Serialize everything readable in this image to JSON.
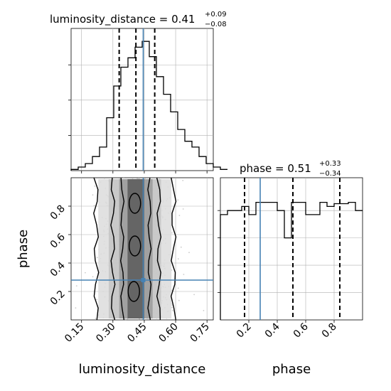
{
  "chart_data": [
    {
      "type": "histogram",
      "panel": "luminosity_distance marginal",
      "title": {
        "param": "luminosity_distance",
        "median": "0.41",
        "plus": "+0.09",
        "minus": "−0.08"
      },
      "xlim": [
        0.1,
        0.78
      ],
      "bin_edges_start": 0.1,
      "bin_width": 0.034,
      "counts": [
        1,
        3,
        6,
        12,
        20,
        45,
        72,
        88,
        96,
        105,
        110,
        97,
        80,
        65,
        50,
        35,
        25,
        20,
        12,
        6,
        3,
        1
      ],
      "quantiles": [
        0.33,
        0.41,
        0.5
      ],
      "truth": 0.445,
      "grid": true
    },
    {
      "type": "histogram",
      "panel": "phase marginal",
      "title": {
        "param": "phase",
        "median": "0.51",
        "plus": "+0.33",
        "minus": "−0.34"
      },
      "xlim": [
        0.0,
        1.0
      ],
      "bin_edges_start": 0.0,
      "bin_width": 0.05,
      "counts": [
        0.77,
        0.8,
        0.8,
        0.83,
        0.77,
        0.86,
        0.86,
        0.86,
        0.8,
        0.6,
        0.86,
        0.86,
        0.77,
        0.77,
        0.86,
        0.83,
        0.85,
        0.85,
        0.86,
        0.8
      ],
      "ylim": [
        0,
        1.04
      ],
      "quantiles": [
        0.17,
        0.51,
        0.84
      ],
      "truth": 0.28,
      "grid": true
    },
    {
      "type": "contour",
      "panel": "luminosity_distance vs phase",
      "xlim": [
        0.1,
        0.78
      ],
      "ylim": [
        0.0,
        1.0
      ],
      "x_center": 0.41,
      "x_sigma": 0.085,
      "truth": {
        "luminosity_distance": 0.445,
        "phase": 0.28
      },
      "grid": true
    }
  ],
  "axes": {
    "luminosity_distance": {
      "label": "luminosity_distance",
      "ticks": [
        0.15,
        0.3,
        0.45,
        0.6,
        0.75
      ],
      "tick_labels": [
        "0.15",
        "0.30",
        "0.45",
        "0.60",
        "0.75"
      ]
    },
    "phase": {
      "label": "phase",
      "ticks": [
        0.2,
        0.4,
        0.6,
        0.8
      ],
      "tick_labels": [
        "0.2",
        "0.4",
        "0.6",
        "0.8"
      ]
    }
  },
  "colors": {
    "truth": "#4682b4",
    "hist": "#000000",
    "grid": "#b0b0b0"
  }
}
